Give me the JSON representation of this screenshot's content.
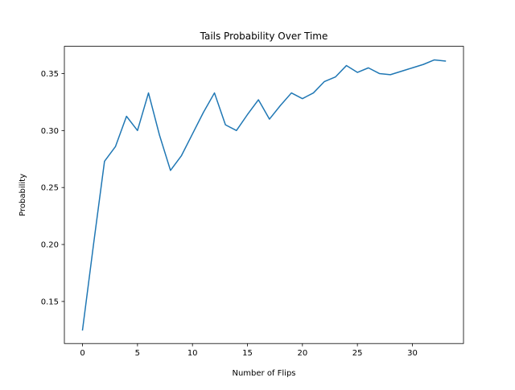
{
  "chart_data": {
    "type": "line",
    "title": "Tails Probability Over Time",
    "xlabel": "Number of Flips",
    "ylabel": "Probability",
    "xlim": [
      -1.65,
      34.65
    ],
    "ylim": [
      0.1131,
      0.3739
    ],
    "xticks": [
      0,
      5,
      10,
      15,
      20,
      25,
      30
    ],
    "xtick_labels": [
      "0",
      "5",
      "10",
      "15",
      "20",
      "25",
      "30"
    ],
    "yticks": [
      0.15,
      0.2,
      0.25,
      0.3,
      0.35
    ],
    "ytick_labels": [
      "0.15",
      "0.20",
      "0.25",
      "0.30",
      "0.35"
    ],
    "grid": false,
    "legend": false,
    "line_color": "#1f77b4",
    "series": [
      {
        "x": [
          0,
          1,
          2,
          3,
          4,
          5,
          6,
          7,
          8,
          9,
          10,
          11,
          12,
          13,
          14,
          15,
          16,
          17,
          18,
          19,
          20,
          21,
          22,
          23,
          24,
          25,
          26,
          27,
          28,
          29,
          30,
          31,
          32,
          33
        ],
        "values": [
          0.125,
          0.2,
          0.273,
          0.286,
          0.3125,
          0.3,
          0.333,
          0.296,
          0.265,
          0.278,
          0.297,
          0.316,
          0.333,
          0.305,
          0.3,
          0.314,
          0.327,
          0.31,
          0.322,
          0.333,
          0.328,
          0.333,
          0.343,
          0.347,
          0.357,
          0.351,
          0.355,
          0.35,
          0.349,
          0.352,
          0.355,
          0.358,
          0.362,
          0.361
        ]
      }
    ]
  }
}
